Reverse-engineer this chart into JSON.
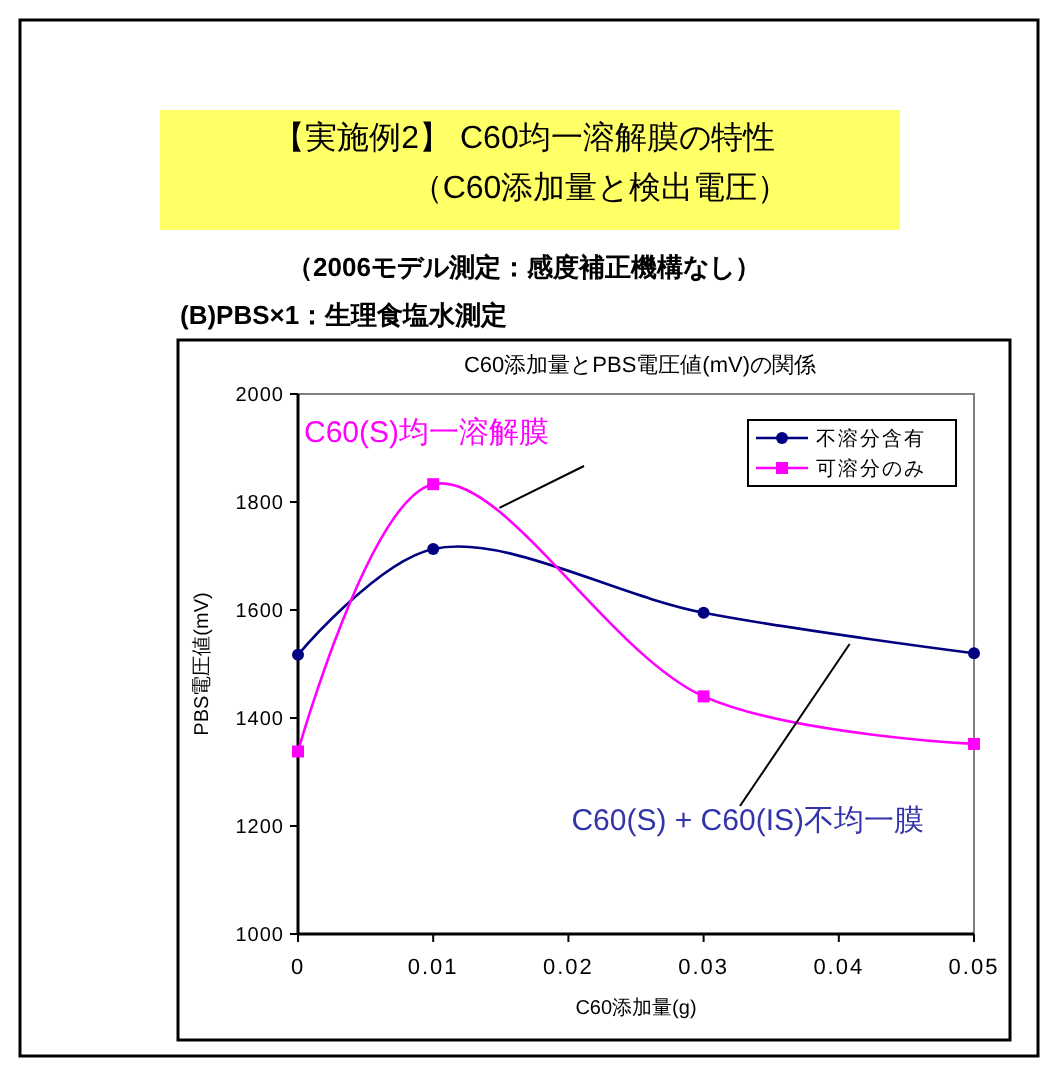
{
  "chart_data": {
    "type": "line",
    "title": "C60添加量とPBS電圧値(mV)の関係",
    "xlabel": "C60添加量(g)",
    "ylabel": "PBS電圧値(mV)",
    "x": [
      0,
      0.01,
      0.03,
      0.05
    ],
    "series": [
      {
        "name": "不溶分含有",
        "color": "#000080",
        "values": [
          1517,
          1713,
          1595,
          1520
        ],
        "marker": "circle"
      },
      {
        "name": "可溶分のみ",
        "color": "#ff00ff",
        "values": [
          1338,
          1833,
          1440,
          1352
        ],
        "marker": "square"
      }
    ],
    "xlim": [
      0,
      0.05
    ],
    "xticks": [
      0,
      0.01,
      0.02,
      0.03,
      0.04,
      0.05
    ],
    "ylim": [
      1000,
      2000
    ],
    "yticks": [
      1000,
      1200,
      1400,
      1600,
      1800,
      2000
    ],
    "grid": false,
    "legend": "top right",
    "line_style": "solid",
    "annotations": [
      "【実施例2】 C60均一溶解膜の特性",
      "（C60添加量と検出電圧）",
      "（2006モデル測定：感度補正機構なし）",
      "(B)PBS×1：生理食塩水測定",
      {
        "text": "C60(S)均一溶解膜",
        "x": 0.0149,
        "y": 1789
      },
      {
        "text": "C60(S) + C60(IS)不均一膜",
        "x": 0.0408,
        "y": 1537
      }
    ]
  }
}
